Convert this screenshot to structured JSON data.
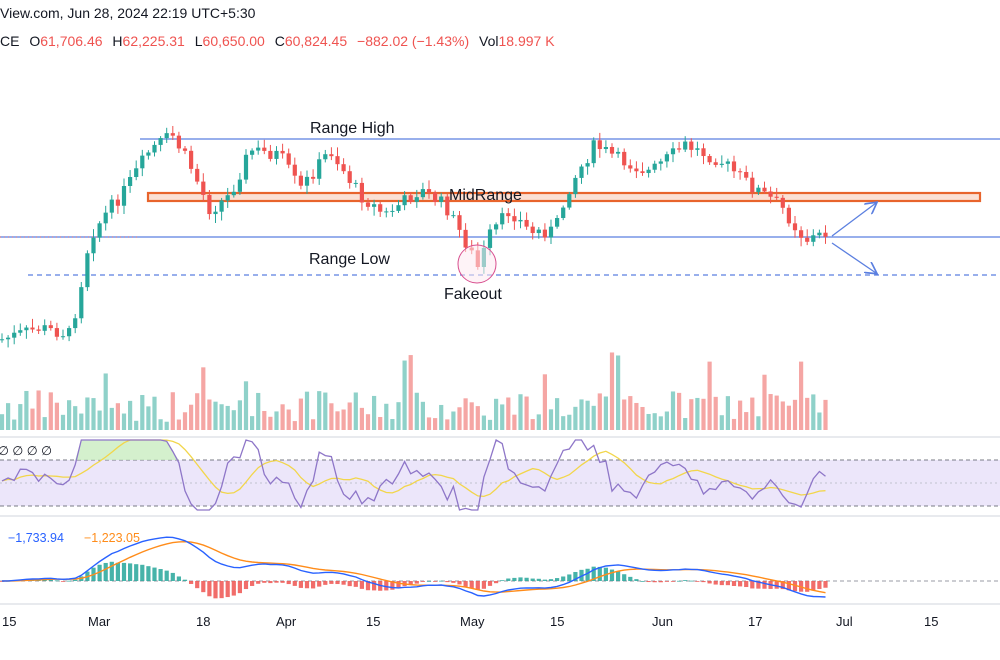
{
  "header": {
    "source_line": "View.com, Jun 28, 2024 22:19 UTC+5:30",
    "symbol_fragment": "CE",
    "open_label": "O",
    "open": "61,706.46",
    "high_label": "H",
    "high": "62,225.31",
    "low_label": "L",
    "low": "60,650.00",
    "close_label": "C",
    "close": "60,824.45",
    "change": "−882.02 (−1.43%)",
    "volume_label": "Vol",
    "volume": "18.997 K"
  },
  "colors": {
    "up": "#26a69a",
    "down": "#ef5350",
    "vol_up": "#8fd1c9",
    "vol_down": "#f5a6a4",
    "level": "#5b7fe0",
    "midrange": "#e8642c",
    "rsi_line": "#8e76c8",
    "rsi_ma": "#f2d64b",
    "macd": "#2962ff",
    "signal": "#ff8c1a"
  },
  "annotations": {
    "range_high": "Range High",
    "midrange": "MidRange",
    "range_low": "Range Low",
    "fakeout": "Fakeout"
  },
  "indicators": {
    "rsi_glyphs": "∅ ∅ ∅ ∅",
    "macd_value": "−1,733.94",
    "signal_value": "−1,223.05"
  },
  "chart_data": {
    "type": "candlestick",
    "x_axis_labels": [
      "15",
      "Mar",
      "18",
      "Apr",
      "15",
      "May",
      "15",
      "Jun",
      "17",
      "Jul",
      "15"
    ],
    "price_shape": {
      "phases": [
        "late-Feb breakout",
        "Mar rally to range high",
        "Mar–Apr ranging",
        "May fakeout below range low",
        "late-May return to range high",
        "June decline to range low"
      ],
      "levels": [
        "Range High",
        "MidRange",
        "Range Low",
        "Fakeout low (dashed)"
      ]
    },
    "panels": [
      "price",
      "volume",
      "RSI",
      "MACD"
    ],
    "grid": false,
    "legend": "none"
  }
}
